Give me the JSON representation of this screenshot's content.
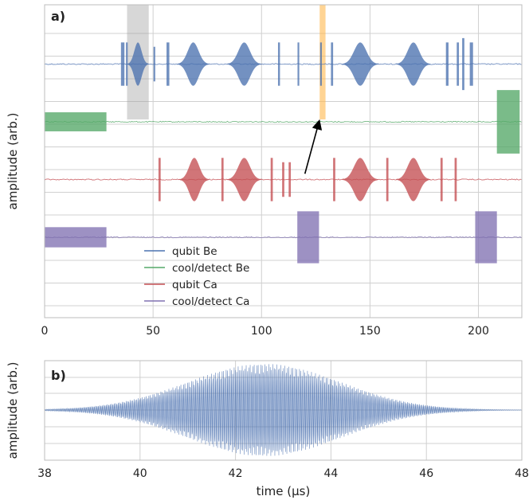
{
  "chart_data": [
    {
      "type": "line",
      "panel_label": "a)",
      "ylabel": "amplitude (arb.)",
      "xlim": [
        0,
        220
      ],
      "xticks": [
        0,
        50,
        100,
        150,
        200
      ],
      "xtick_labels": [
        "0",
        "50",
        "100",
        "150",
        "200"
      ],
      "legend": {
        "placement": "lower-middle",
        "entries": [
          "qubit Be",
          "cool/detect Be",
          "qubit Ca",
          "cool/detect Ca"
        ]
      },
      "series": [
        {
          "name": "qubit Be",
          "color": "#4c72b0",
          "baseline": 3,
          "pulses": [
            {
              "kind": "rect",
              "start": 35.2,
              "end": 36.8,
              "amp": 0.75
            },
            {
              "kind": "rect",
              "start": 37.5,
              "end": 38.3,
              "amp": 0.75
            },
            {
              "kind": "gauss",
              "start": 38,
              "end": 48,
              "amp": 0.75
            },
            {
              "kind": "rect",
              "start": 50.2,
              "end": 51.0,
              "amp": 0.6
            },
            {
              "kind": "rect",
              "start": 56.2,
              "end": 57.5,
              "amp": 0.75
            },
            {
              "kind": "gauss",
              "start": 61,
              "end": 76,
              "amp": 0.75
            },
            {
              "kind": "gauss",
              "start": 84,
              "end": 100,
              "amp": 0.75
            },
            {
              "kind": "rect",
              "start": 107.6,
              "end": 108.5,
              "amp": 0.75
            },
            {
              "kind": "rect",
              "start": 116.6,
              "end": 117.4,
              "amp": 0.75
            },
            {
              "kind": "rect",
              "start": 127.0,
              "end": 127.8,
              "amp": 0.75
            },
            {
              "kind": "rect",
              "start": 132.0,
              "end": 133.0,
              "amp": 0.75
            },
            {
              "kind": "gauss",
              "start": 137,
              "end": 154,
              "amp": 0.75
            },
            {
              "kind": "gauss",
              "start": 162,
              "end": 178,
              "amp": 0.75
            },
            {
              "kind": "rect",
              "start": 185.0,
              "end": 186.2,
              "amp": 0.75
            },
            {
              "kind": "rect",
              "start": 190.0,
              "end": 191.0,
              "amp": 0.75
            },
            {
              "kind": "rect",
              "start": 192.5,
              "end": 193.5,
              "amp": 0.9
            },
            {
              "kind": "rect",
              "start": 196.0,
              "end": 197.5,
              "amp": 0.75
            }
          ]
        },
        {
          "name": "cool/detect Be",
          "color": "#55a868",
          "baseline": 2,
          "pulses": [
            {
              "kind": "rect",
              "start": 0,
              "end": 28.5,
              "amp": 0.33
            },
            {
              "kind": "rect",
              "start": 208.5,
              "end": 219,
              "amp": 1.1
            }
          ]
        },
        {
          "name": "qubit Ca",
          "color": "#c44e52",
          "baseline": 1,
          "pulses": [
            {
              "kind": "rect",
              "start": 52.5,
              "end": 53.5,
              "amp": 0.75
            },
            {
              "kind": "gauss",
              "start": 62,
              "end": 76,
              "amp": 0.75
            },
            {
              "kind": "rect",
              "start": 81.5,
              "end": 82.5,
              "amp": 0.75
            },
            {
              "kind": "gauss",
              "start": 84,
              "end": 100,
              "amp": 0.75
            },
            {
              "kind": "rect",
              "start": 104.2,
              "end": 105.2,
              "amp": 0.75
            },
            {
              "kind": "rect",
              "start": 109.5,
              "end": 110.5,
              "amp": 0.6
            },
            {
              "kind": "rect",
              "start": 112.5,
              "end": 113.5,
              "amp": 0.6
            },
            {
              "kind": "rect",
              "start": 133.0,
              "end": 134.0,
              "amp": 0.75
            },
            {
              "kind": "gauss",
              "start": 137,
              "end": 154,
              "amp": 0.75
            },
            {
              "kind": "rect",
              "start": 157.5,
              "end": 158.5,
              "amp": 0.75
            },
            {
              "kind": "gauss",
              "start": 162,
              "end": 178,
              "amp": 0.75
            },
            {
              "kind": "rect",
              "start": 182.5,
              "end": 183.5,
              "amp": 0.75
            },
            {
              "kind": "rect",
              "start": 189.0,
              "end": 190.0,
              "amp": 0.75
            }
          ]
        },
        {
          "name": "cool/detect Ca",
          "color": "#8172b2",
          "baseline": 0,
          "pulses": [
            {
              "kind": "rect",
              "start": 0,
              "end": 28.5,
              "amp": 0.35
            },
            {
              "kind": "rect",
              "start": 116.5,
              "end": 126.5,
              "amp": 0.9
            },
            {
              "kind": "rect",
              "start": 198.5,
              "end": 208.5,
              "amp": 0.9
            }
          ]
        }
      ],
      "annotations": {
        "gray_span": [
          38,
          48
        ],
        "orange_span": [
          126.8,
          129.5
        ],
        "arrow": {
          "from": [
            120,
            1.1
          ],
          "to": [
            126.5,
            2.0
          ]
        }
      }
    },
    {
      "type": "line",
      "panel_label": "b)",
      "xlabel": "time (μs)",
      "ylabel": "amplitude (arb.)",
      "xlim": [
        38,
        48
      ],
      "xticks": [
        38,
        40,
        42,
        44,
        46,
        48
      ],
      "xtick_labels": [
        "38",
        "40",
        "42",
        "44",
        "46",
        "48"
      ],
      "series": [
        {
          "name": "qubit Be",
          "color": "#4c72b0",
          "shape": "gaussian",
          "center": 42.6,
          "sigma": 1.6,
          "amplitude": 1.0
        }
      ]
    }
  ]
}
